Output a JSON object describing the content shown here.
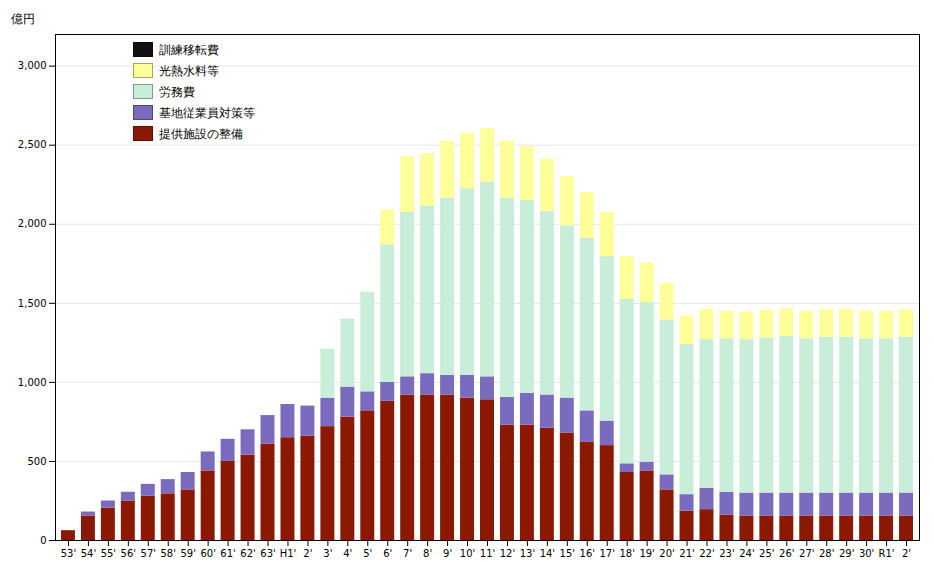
{
  "chart_data": {
    "type": "bar",
    "stacked": true,
    "categories": [
      "53'",
      "54'",
      "55'",
      "56'",
      "57'",
      "58'",
      "59'",
      "60'",
      "61'",
      "62'",
      "63'",
      "H1'",
      "2'",
      "3'",
      "4'",
      "5'",
      "6'",
      "7'",
      "8'",
      "9'",
      "10'",
      "11'",
      "12'",
      "13'",
      "14'",
      "15'",
      "16'",
      "17'",
      "18'",
      "19'",
      "20'",
      "21'",
      "22'",
      "23'",
      "24'",
      "25'",
      "26'",
      "27'",
      "28'",
      "29'",
      "30'",
      "R1'",
      "2'"
    ],
    "series": [
      {
        "name": "提供施設の整備",
        "color": "#8B1800",
        "values": [
          62,
          155,
          205,
          250,
          280,
          295,
          320,
          440,
          500,
          540,
          610,
          650,
          660,
          720,
          780,
          820,
          880,
          920,
          920,
          920,
          900,
          890,
          730,
          730,
          710,
          680,
          620,
          600,
          430,
          440,
          320,
          185,
          195,
          160,
          155,
          155,
          155,
          155,
          155,
          155,
          155,
          155,
          155
        ]
      },
      {
        "name": "基地従業員対策等",
        "color": "#7B6BBE",
        "values": [
          0,
          25,
          45,
          55,
          75,
          90,
          110,
          120,
          140,
          160,
          180,
          210,
          190,
          180,
          190,
          120,
          120,
          115,
          135,
          125,
          145,
          145,
          175,
          200,
          210,
          220,
          200,
          155,
          55,
          55,
          95,
          105,
          135,
          145,
          145,
          145,
          145,
          145,
          145,
          145,
          145,
          145,
          145
        ]
      },
      {
        "name": "労務費",
        "color": "#C8EDD8",
        "values": [
          0,
          0,
          0,
          0,
          0,
          0,
          0,
          0,
          0,
          0,
          0,
          0,
          0,
          310,
          430,
          630,
          870,
          1040,
          1060,
          1120,
          1180,
          1230,
          1260,
          1220,
          1160,
          1090,
          1090,
          1040,
          1040,
          1010,
          980,
          950,
          940,
          970,
          970,
          980,
          990,
          975,
          985,
          985,
          975,
          975,
          985
        ]
      },
      {
        "name": "光熱水料等",
        "color": "#FFFF99",
        "values": [
          0,
          0,
          0,
          0,
          0,
          0,
          0,
          0,
          0,
          0,
          0,
          0,
          0,
          0,
          0,
          0,
          220,
          350,
          330,
          360,
          350,
          340,
          360,
          340,
          330,
          310,
          290,
          280,
          270,
          250,
          230,
          180,
          190,
          175,
          175,
          175,
          175,
          175,
          175,
          175,
          175,
          175,
          175
        ]
      },
      {
        "name": "訓練移転費",
        "color": "#111111",
        "values": [
          0,
          0,
          0,
          0,
          0,
          0,
          0,
          0,
          0,
          0,
          0,
          0,
          0,
          0,
          0,
          0,
          0,
          0,
          0,
          0,
          0,
          0,
          0,
          0,
          0,
          0,
          0,
          0,
          0,
          0,
          0,
          0,
          0,
          0,
          0,
          0,
          0,
          0,
          0,
          0,
          0,
          0,
          0
        ]
      }
    ],
    "ylabel": "億円",
    "ylim": [
      0,
      3200
    ],
    "yticks": [
      0,
      500,
      {
        "value": 1000,
        "label": "1,000"
      },
      {
        "value": 1500,
        "label": "1,500"
      },
      {
        "value": 2000,
        "label": "2,000"
      },
      {
        "value": 2500,
        "label": "2,500"
      },
      {
        "value": 3000,
        "label": "3,000"
      }
    ],
    "grid": true,
    "legend": "upper left"
  }
}
